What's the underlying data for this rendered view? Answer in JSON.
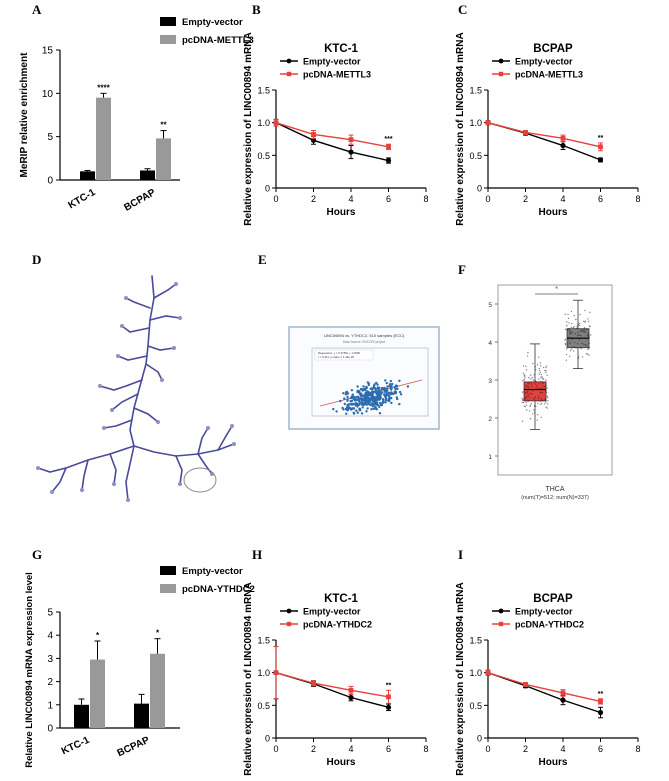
{
  "panels": {
    "A": "A",
    "B": "B",
    "C": "C",
    "D": "D",
    "E": "E",
    "F": "F",
    "G": "G",
    "H": "H",
    "I": "I"
  },
  "colors": {
    "black_series": "#000000",
    "gray_series": "#999999",
    "red_series": "#e8403c"
  },
  "chart_data": [
    {
      "id": "A",
      "type": "bar",
      "categories": [
        "KTC-1",
        "BCPAP"
      ],
      "series": [
        {
          "name": "Empty-vector",
          "values": [
            1.0,
            1.1
          ],
          "errors": [
            0.1,
            0.2
          ]
        },
        {
          "name": "pcDNA-METTL3",
          "values": [
            9.5,
            4.8
          ],
          "errors": [
            0.5,
            0.9
          ]
        }
      ],
      "significance": [
        "****",
        "**"
      ],
      "ylabel": "MeRIP relative enrichment",
      "ylim": [
        0,
        15
      ],
      "yticks": [
        0,
        5,
        10,
        15
      ],
      "legend": "top-right"
    },
    {
      "id": "B",
      "type": "line",
      "title": "KTC-1",
      "x": [
        0,
        2,
        4,
        6
      ],
      "series": [
        {
          "name": "Empty-vector",
          "values": [
            1.0,
            0.73,
            0.55,
            0.42
          ],
          "errors": [
            0.05,
            0.06,
            0.1,
            0.04
          ]
        },
        {
          "name": "pcDNA-METTL3",
          "values": [
            1.0,
            0.82,
            0.74,
            0.63
          ],
          "errors": [
            0.05,
            0.06,
            0.07,
            0.04
          ]
        }
      ],
      "significance": "***",
      "xlabel": "Hours",
      "ylabel": "Relative expression of  LINC00894 mRNA",
      "xlim": [
        0,
        8
      ],
      "ylim": [
        0,
        1.5
      ],
      "xticks": [
        0,
        2,
        4,
        6,
        8
      ],
      "yticks": [
        "0",
        "0.5",
        "1.0",
        "1.5"
      ]
    },
    {
      "id": "C",
      "type": "line",
      "title": "BCPAP",
      "x": [
        0,
        2,
        4,
        6
      ],
      "series": [
        {
          "name": "Empty-vector",
          "values": [
            1.0,
            0.84,
            0.65,
            0.43
          ],
          "errors": [
            0.03,
            0.03,
            0.06,
            0.03
          ]
        },
        {
          "name": "pcDNA-METTL3",
          "values": [
            1.0,
            0.85,
            0.76,
            0.63
          ],
          "errors": [
            0.03,
            0.03,
            0.05,
            0.06
          ]
        }
      ],
      "significance": "**",
      "xlabel": "Hours",
      "ylabel": "Relative expression of  LINC00894 mRNA",
      "xlim": [
        0,
        8
      ],
      "ylim": [
        0,
        1.5
      ],
      "xticks": [
        0,
        2,
        4,
        6,
        8
      ],
      "yticks": [
        "0",
        "0.5",
        "1.0",
        "1.5"
      ]
    },
    {
      "id": "F",
      "type": "box",
      "categories": [
        "T",
        "N"
      ],
      "boxes": [
        {
          "color": "#e8403c",
          "q1": 2.45,
          "median": 2.75,
          "q3": 2.95,
          "whisker_low": 1.7,
          "whisker_high": 3.95
        },
        {
          "color": "#7f7f7f",
          "q1": 3.85,
          "median": 4.1,
          "q3": 4.35,
          "whisker_low": 3.3,
          "whisker_high": 5.1
        }
      ],
      "significance": "*",
      "ylim": [
        0.5,
        5.5
      ],
      "yticks": [
        1,
        2,
        3,
        4,
        5
      ],
      "xlabel": "THCA",
      "xlabel2": "(num(T)=512; num(N)=337)"
    },
    {
      "id": "G",
      "type": "bar",
      "categories": [
        "KTC-1",
        "BCPAP"
      ],
      "series": [
        {
          "name": "Empty-vector",
          "values": [
            1.0,
            1.05
          ],
          "errors": [
            0.25,
            0.4
          ]
        },
        {
          "name": "pcDNA-YTHDC2",
          "values": [
            2.95,
            3.2
          ],
          "errors": [
            0.8,
            0.65
          ]
        }
      ],
      "significance": [
        "*",
        "*"
      ],
      "ylabel": "Relative LINC00894 mRNA expression  level",
      "ylim": [
        0,
        5
      ],
      "yticks": [
        0,
        1,
        2,
        3,
        4,
        5
      ],
      "legend": "top-right"
    },
    {
      "id": "H",
      "type": "line",
      "title": "KTC-1",
      "x": [
        0,
        2,
        4,
        6
      ],
      "series": [
        {
          "name": "Empty-vector",
          "values": [
            1.0,
            0.83,
            0.62,
            0.47
          ],
          "errors": [
            0.4,
            0.04,
            0.05,
            0.05
          ]
        },
        {
          "name": "pcDNA-YTHDC2",
          "values": [
            1.0,
            0.84,
            0.73,
            0.63
          ],
          "errors": [
            0.4,
            0.04,
            0.06,
            0.1
          ]
        }
      ],
      "significance": "**",
      "xlabel": "Hours",
      "ylabel": "Relative expression of  LINC00894 mRNA",
      "xlim": [
        0,
        8
      ],
      "ylim": [
        0,
        1.5
      ],
      "xticks": [
        0,
        2,
        4,
        6,
        8
      ],
      "yticks": [
        "0",
        "0.5",
        "1.0",
        "1.5"
      ]
    },
    {
      "id": "I",
      "type": "line",
      "title": "BCPAP",
      "x": [
        0,
        2,
        4,
        6
      ],
      "series": [
        {
          "name": "Empty-vector",
          "values": [
            1.0,
            0.8,
            0.58,
            0.39
          ],
          "errors": [
            0.04,
            0.03,
            0.07,
            0.08
          ]
        },
        {
          "name": "pcDNA-YTHDC2",
          "values": [
            1.0,
            0.82,
            0.69,
            0.56
          ],
          "errors": [
            0.04,
            0.03,
            0.05,
            0.04
          ]
        }
      ],
      "significance": "**",
      "xlabel": "Hours",
      "ylabel": "Relative expression of  LINC00894 mRNA",
      "xlim": [
        0,
        8
      ],
      "ylim": [
        0,
        1.5
      ],
      "xticks": [
        0,
        2,
        4,
        6,
        8
      ],
      "yticks": [
        "0",
        "0.5",
        "1.0",
        "1.5"
      ]
    }
  ],
  "scatter_panel_E": {
    "title": "LINC00894 vs. YTHDC2, 510 samples (ECC)",
    "subtitle": "Data Source: ENCORI project",
    "legend_1": "Regression: y = 0.3759x + 1.0506",
    "legend_2": "r = 0.411, p-value = 1.49e-18"
  }
}
